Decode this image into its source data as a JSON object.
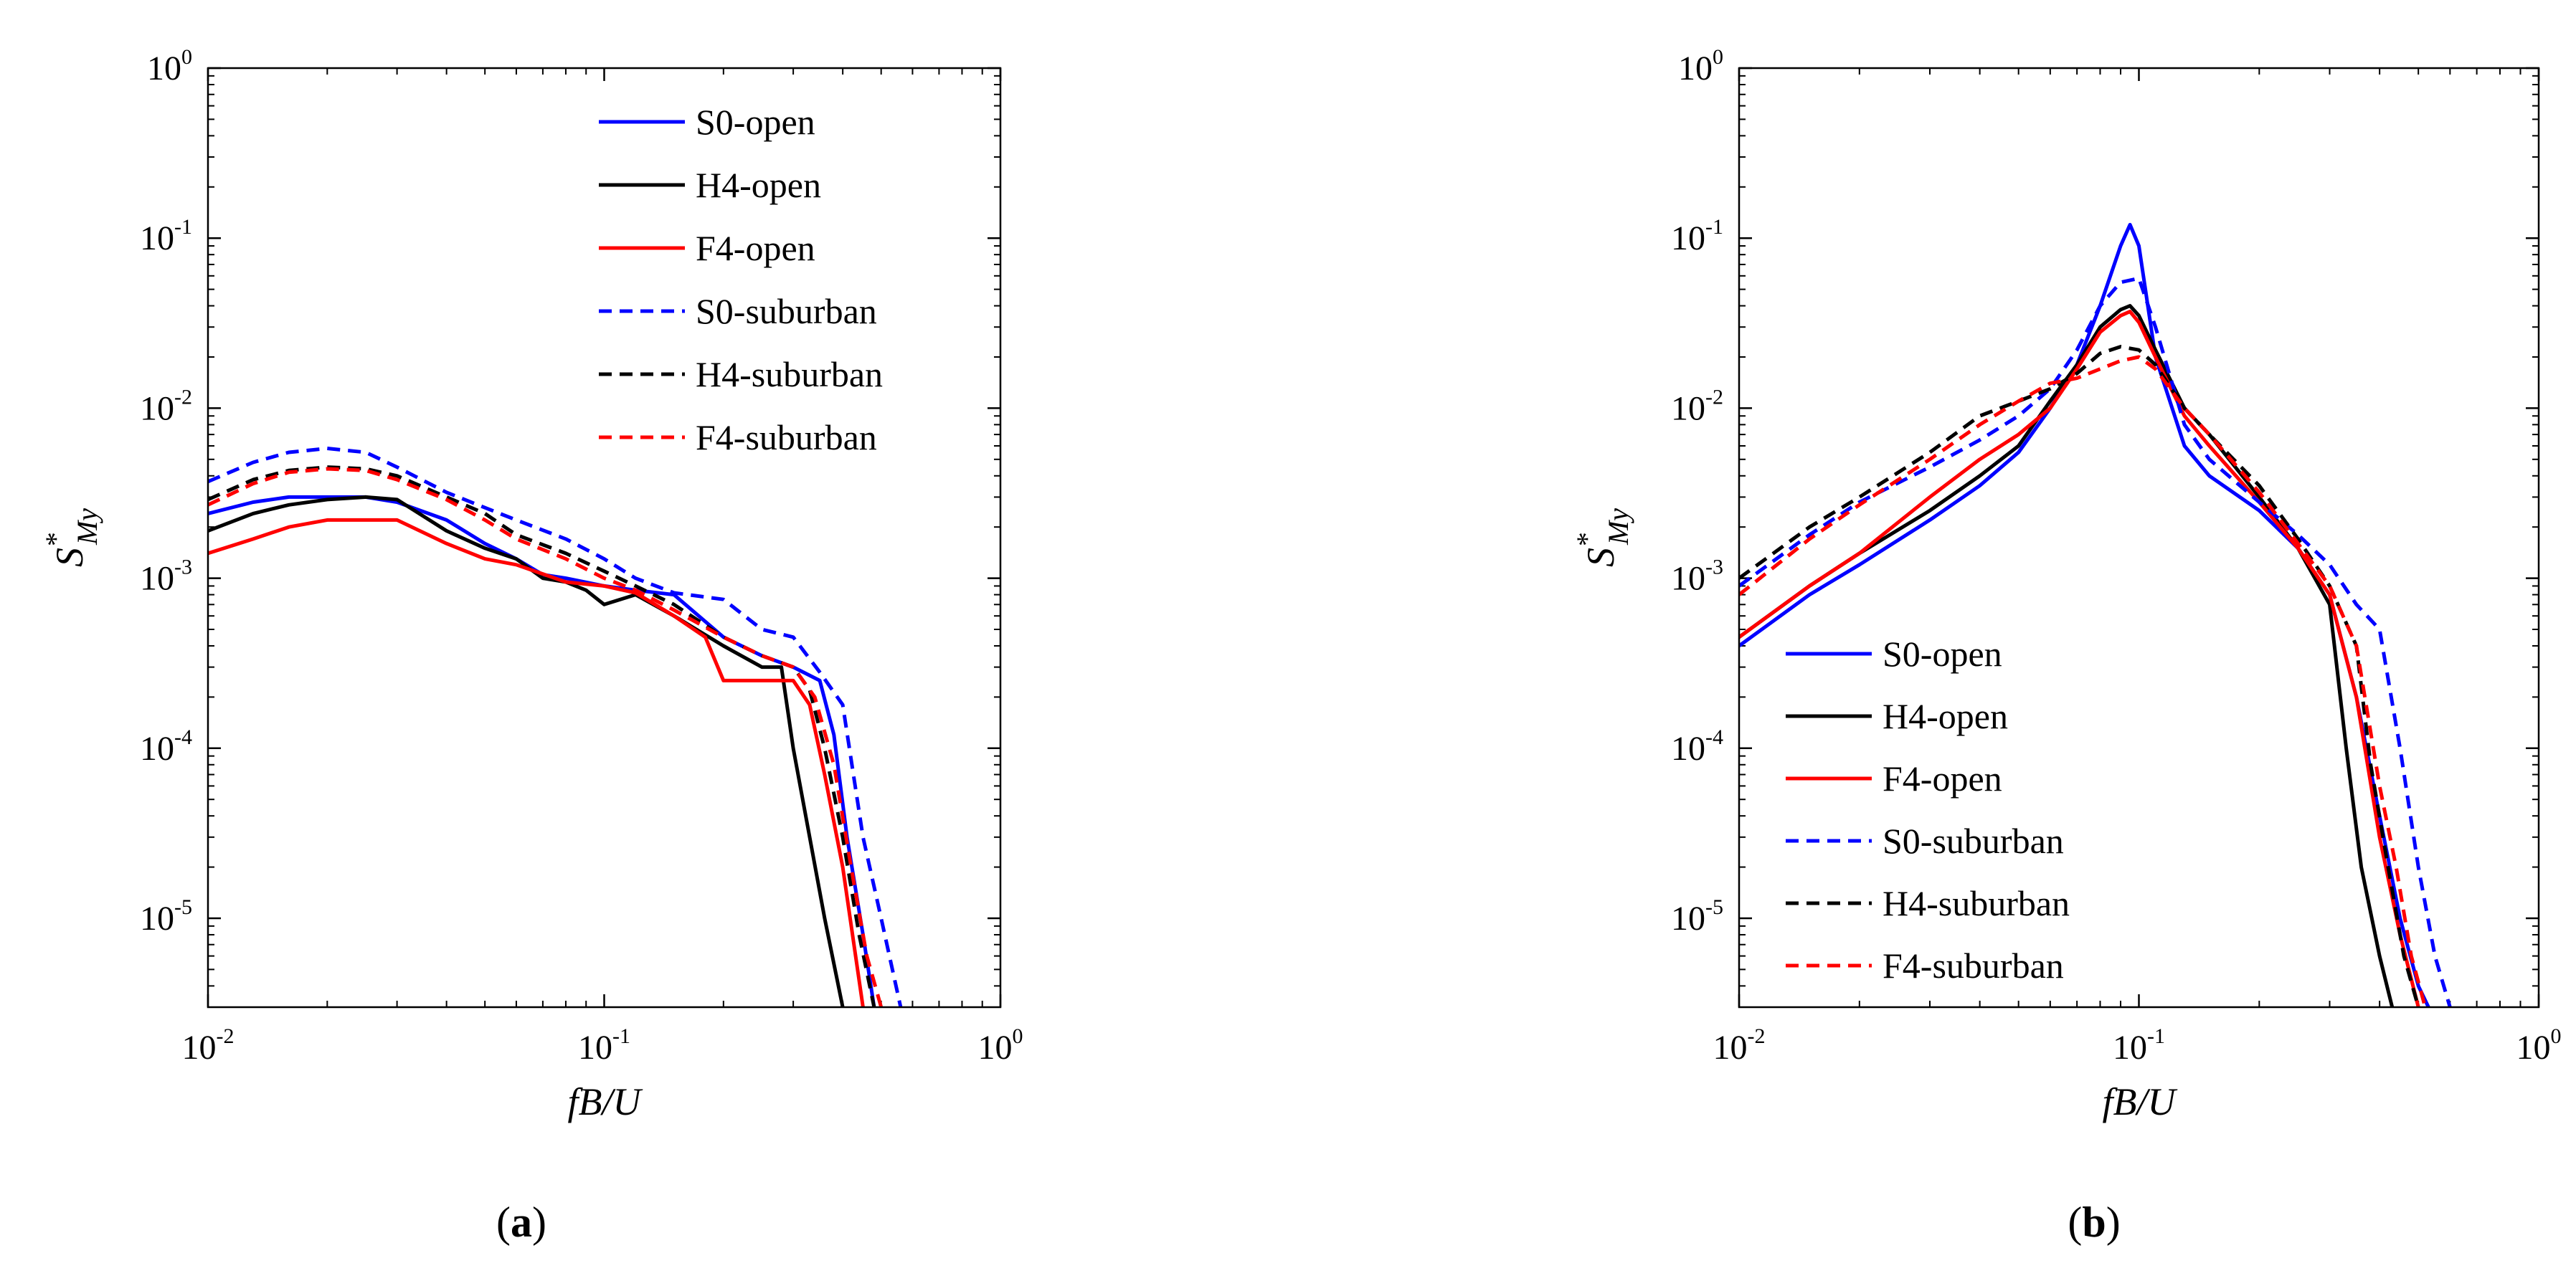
{
  "chart_data": [
    {
      "type": "line",
      "panel": "a",
      "caption_letter": "a",
      "title": "",
      "xlabel": "fB/U",
      "ylabel": "S*My",
      "ylabel_base": "S",
      "ylabel_sup": "*",
      "ylabel_sub": "My",
      "xscale": "log",
      "yscale": "log",
      "xlim": [
        0.01,
        1
      ],
      "ylim": [
        3e-06,
        1
      ],
      "x_ticks": [
        {
          "base": "10",
          "exp": "-2"
        },
        {
          "base": "10",
          "exp": "-1"
        },
        {
          "base": "10",
          "exp": "0"
        }
      ],
      "y_ticks": [
        {
          "base": "10",
          "exp": "-5"
        },
        {
          "base": "10",
          "exp": "-4"
        },
        {
          "base": "10",
          "exp": "-3"
        },
        {
          "base": "10",
          "exp": "-2"
        },
        {
          "base": "10",
          "exp": "-1"
        },
        {
          "base": "10",
          "exp": "0"
        }
      ],
      "legend_position": "top-right",
      "series": [
        {
          "name": "S0-open",
          "color": "#0000ff",
          "dash": false,
          "x": [
            0.01,
            0.013,
            0.016,
            0.02,
            0.025,
            0.03,
            0.04,
            0.05,
            0.06,
            0.07,
            0.08,
            0.1,
            0.12,
            0.15,
            0.2,
            0.25,
            0.3,
            0.35,
            0.38,
            0.41,
            0.45,
            0.48
          ],
          "y": [
            0.0024,
            0.0028,
            0.003,
            0.003,
            0.003,
            0.0028,
            0.0022,
            0.0016,
            0.0013,
            0.00105,
            0.001,
            0.0009,
            0.00085,
            0.0008,
            0.00045,
            0.00035,
            0.0003,
            0.00025,
            0.00012,
            3e-05,
            8e-06,
            3e-06
          ]
        },
        {
          "name": "H4-open",
          "color": "#000000",
          "dash": false,
          "x": [
            0.01,
            0.013,
            0.016,
            0.02,
            0.025,
            0.03,
            0.04,
            0.05,
            0.06,
            0.07,
            0.08,
            0.09,
            0.1,
            0.12,
            0.15,
            0.2,
            0.25,
            0.28,
            0.3,
            0.33,
            0.36,
            0.4
          ],
          "y": [
            0.0019,
            0.0024,
            0.0027,
            0.0029,
            0.003,
            0.0029,
            0.0019,
            0.0015,
            0.0013,
            0.001,
            0.00095,
            0.00085,
            0.0007,
            0.0008,
            0.0006,
            0.0004,
            0.0003,
            0.0003,
            0.0001,
            3e-05,
            1e-05,
            3e-06
          ]
        },
        {
          "name": "F4-open",
          "color": "#ff0000",
          "dash": false,
          "x": [
            0.01,
            0.013,
            0.016,
            0.02,
            0.025,
            0.03,
            0.04,
            0.05,
            0.06,
            0.08,
            0.1,
            0.12,
            0.15,
            0.18,
            0.2,
            0.25,
            0.3,
            0.33,
            0.36,
            0.4,
            0.45
          ],
          "y": [
            0.0014,
            0.0017,
            0.002,
            0.0022,
            0.0022,
            0.0022,
            0.0016,
            0.0013,
            0.0012,
            0.00095,
            0.0009,
            0.00082,
            0.0006,
            0.00045,
            0.00025,
            0.00025,
            0.00025,
            0.00018,
            7e-05,
            2e-05,
            3e-06
          ]
        },
        {
          "name": "S0-suburban",
          "color": "#0000ff",
          "dash": true,
          "x": [
            0.01,
            0.013,
            0.016,
            0.02,
            0.025,
            0.03,
            0.04,
            0.05,
            0.06,
            0.08,
            0.1,
            0.12,
            0.15,
            0.2,
            0.25,
            0.3,
            0.35,
            0.4,
            0.45,
            0.5,
            0.56
          ],
          "y": [
            0.0037,
            0.0048,
            0.0055,
            0.0058,
            0.0055,
            0.0045,
            0.0032,
            0.0026,
            0.0022,
            0.0017,
            0.0013,
            0.001,
            0.00082,
            0.00075,
            0.0005,
            0.00045,
            0.00028,
            0.00018,
            3e-05,
            1e-05,
            3e-06
          ]
        },
        {
          "name": "H4-suburban",
          "color": "#000000",
          "dash": true,
          "x": [
            0.01,
            0.013,
            0.016,
            0.02,
            0.025,
            0.03,
            0.04,
            0.05,
            0.06,
            0.08,
            0.1,
            0.12,
            0.15,
            0.2,
            0.25,
            0.3,
            0.33,
            0.36,
            0.4,
            0.44,
            0.48
          ],
          "y": [
            0.0029,
            0.0038,
            0.0043,
            0.0045,
            0.0044,
            0.004,
            0.003,
            0.0024,
            0.0018,
            0.0014,
            0.0011,
            0.0009,
            0.0007,
            0.00045,
            0.00035,
            0.0003,
            0.00022,
            0.0001,
            3e-05,
            8e-06,
            3e-06
          ]
        },
        {
          "name": "F4-suburban",
          "color": "#ff0000",
          "dash": true,
          "x": [
            0.01,
            0.013,
            0.016,
            0.02,
            0.025,
            0.03,
            0.04,
            0.05,
            0.06,
            0.08,
            0.1,
            0.12,
            0.15,
            0.2,
            0.25,
            0.3,
            0.34,
            0.38,
            0.42,
            0.46,
            0.5
          ],
          "y": [
            0.0027,
            0.0036,
            0.0042,
            0.0044,
            0.0043,
            0.0038,
            0.0029,
            0.0022,
            0.0017,
            0.0013,
            0.001,
            0.00085,
            0.00065,
            0.00045,
            0.00035,
            0.0003,
            0.0002,
            8e-05,
            2e-05,
            6e-06,
            3e-06
          ]
        }
      ]
    },
    {
      "type": "line",
      "panel": "b",
      "caption_letter": "b",
      "title": "",
      "xlabel": "fB/U",
      "ylabel": "S*My",
      "ylabel_base": "S",
      "ylabel_sup": "*",
      "ylabel_sub": "My",
      "xscale": "log",
      "yscale": "log",
      "xlim": [
        0.01,
        1
      ],
      "ylim": [
        3e-06,
        1
      ],
      "x_ticks": [
        {
          "base": "10",
          "exp": "-2"
        },
        {
          "base": "10",
          "exp": "-1"
        },
        {
          "base": "10",
          "exp": "0"
        }
      ],
      "y_ticks": [
        {
          "base": "10",
          "exp": "-5"
        },
        {
          "base": "10",
          "exp": "-4"
        },
        {
          "base": "10",
          "exp": "-3"
        },
        {
          "base": "10",
          "exp": "-2"
        },
        {
          "base": "10",
          "exp": "-1"
        },
        {
          "base": "10",
          "exp": "0"
        }
      ],
      "legend_position": "bottom-left",
      "series": [
        {
          "name": "S0-open",
          "color": "#0000ff",
          "dash": false,
          "x": [
            0.01,
            0.015,
            0.02,
            0.03,
            0.04,
            0.05,
            0.06,
            0.07,
            0.08,
            0.09,
            0.095,
            0.1,
            0.11,
            0.13,
            0.15,
            0.2,
            0.25,
            0.3,
            0.35,
            0.4,
            0.45,
            0.5,
            0.53
          ],
          "y": [
            0.0004,
            0.0008,
            0.0012,
            0.0022,
            0.0035,
            0.0055,
            0.01,
            0.018,
            0.04,
            0.09,
            0.12,
            0.09,
            0.02,
            0.006,
            0.004,
            0.0025,
            0.0015,
            0.0008,
            0.0002,
            4e-05,
            1e-05,
            4e-06,
            3e-06
          ]
        },
        {
          "name": "H4-open",
          "color": "#000000",
          "dash": false,
          "x": [
            0.01,
            0.015,
            0.02,
            0.03,
            0.04,
            0.05,
            0.06,
            0.07,
            0.08,
            0.09,
            0.095,
            0.1,
            0.11,
            0.13,
            0.15,
            0.2,
            0.25,
            0.3,
            0.33,
            0.36,
            0.4,
            0.43
          ],
          "y": [
            0.00045,
            0.0009,
            0.0014,
            0.0025,
            0.004,
            0.006,
            0.011,
            0.018,
            0.03,
            0.038,
            0.04,
            0.035,
            0.022,
            0.01,
            0.007,
            0.003,
            0.0015,
            0.0007,
            0.0001,
            2e-05,
            6e-06,
            3e-06
          ]
        },
        {
          "name": "F4-open",
          "color": "#ff0000",
          "dash": false,
          "x": [
            0.01,
            0.015,
            0.02,
            0.03,
            0.04,
            0.05,
            0.06,
            0.07,
            0.08,
            0.09,
            0.095,
            0.1,
            0.11,
            0.13,
            0.15,
            0.2,
            0.25,
            0.3,
            0.35,
            0.4,
            0.45,
            0.5
          ],
          "y": [
            0.00045,
            0.0009,
            0.0014,
            0.003,
            0.005,
            0.007,
            0.01,
            0.017,
            0.028,
            0.035,
            0.037,
            0.032,
            0.02,
            0.009,
            0.006,
            0.0028,
            0.0015,
            0.0008,
            0.0002,
            3e-05,
            8e-06,
            3e-06
          ]
        },
        {
          "name": "S0-suburban",
          "color": "#0000ff",
          "dash": true,
          "x": [
            0.01,
            0.015,
            0.02,
            0.03,
            0.04,
            0.05,
            0.06,
            0.07,
            0.08,
            0.09,
            0.1,
            0.11,
            0.13,
            0.15,
            0.2,
            0.25,
            0.3,
            0.35,
            0.4,
            0.45,
            0.5,
            0.55,
            0.6
          ],
          "y": [
            0.0009,
            0.0018,
            0.0028,
            0.0045,
            0.0065,
            0.009,
            0.013,
            0.022,
            0.04,
            0.055,
            0.058,
            0.03,
            0.008,
            0.005,
            0.0028,
            0.0018,
            0.0012,
            0.0007,
            0.0005,
            0.0001,
            2e-05,
            6e-06,
            3e-06
          ]
        },
        {
          "name": "H4-suburban",
          "color": "#000000",
          "dash": true,
          "x": [
            0.01,
            0.015,
            0.02,
            0.03,
            0.04,
            0.05,
            0.06,
            0.07,
            0.08,
            0.09,
            0.1,
            0.11,
            0.13,
            0.15,
            0.2,
            0.25,
            0.3,
            0.35,
            0.38,
            0.42,
            0.46,
            0.5
          ],
          "y": [
            0.001,
            0.002,
            0.003,
            0.0055,
            0.009,
            0.011,
            0.013,
            0.016,
            0.021,
            0.023,
            0.022,
            0.018,
            0.01,
            0.007,
            0.0035,
            0.0017,
            0.0009,
            0.0004,
            8e-05,
            2e-05,
            6e-06,
            3e-06
          ]
        },
        {
          "name": "F4-suburban",
          "color": "#ff0000",
          "dash": true,
          "x": [
            0.01,
            0.015,
            0.02,
            0.03,
            0.04,
            0.05,
            0.06,
            0.07,
            0.08,
            0.09,
            0.1,
            0.11,
            0.13,
            0.15,
            0.2,
            0.25,
            0.3,
            0.35,
            0.4,
            0.44,
            0.48,
            0.52
          ],
          "y": [
            0.0008,
            0.0017,
            0.0027,
            0.005,
            0.008,
            0.011,
            0.014,
            0.015,
            0.017,
            0.019,
            0.02,
            0.017,
            0.01,
            0.007,
            0.0032,
            0.0016,
            0.0009,
            0.0004,
            6e-05,
            2e-05,
            6e-06,
            3e-06
          ]
        }
      ]
    }
  ]
}
